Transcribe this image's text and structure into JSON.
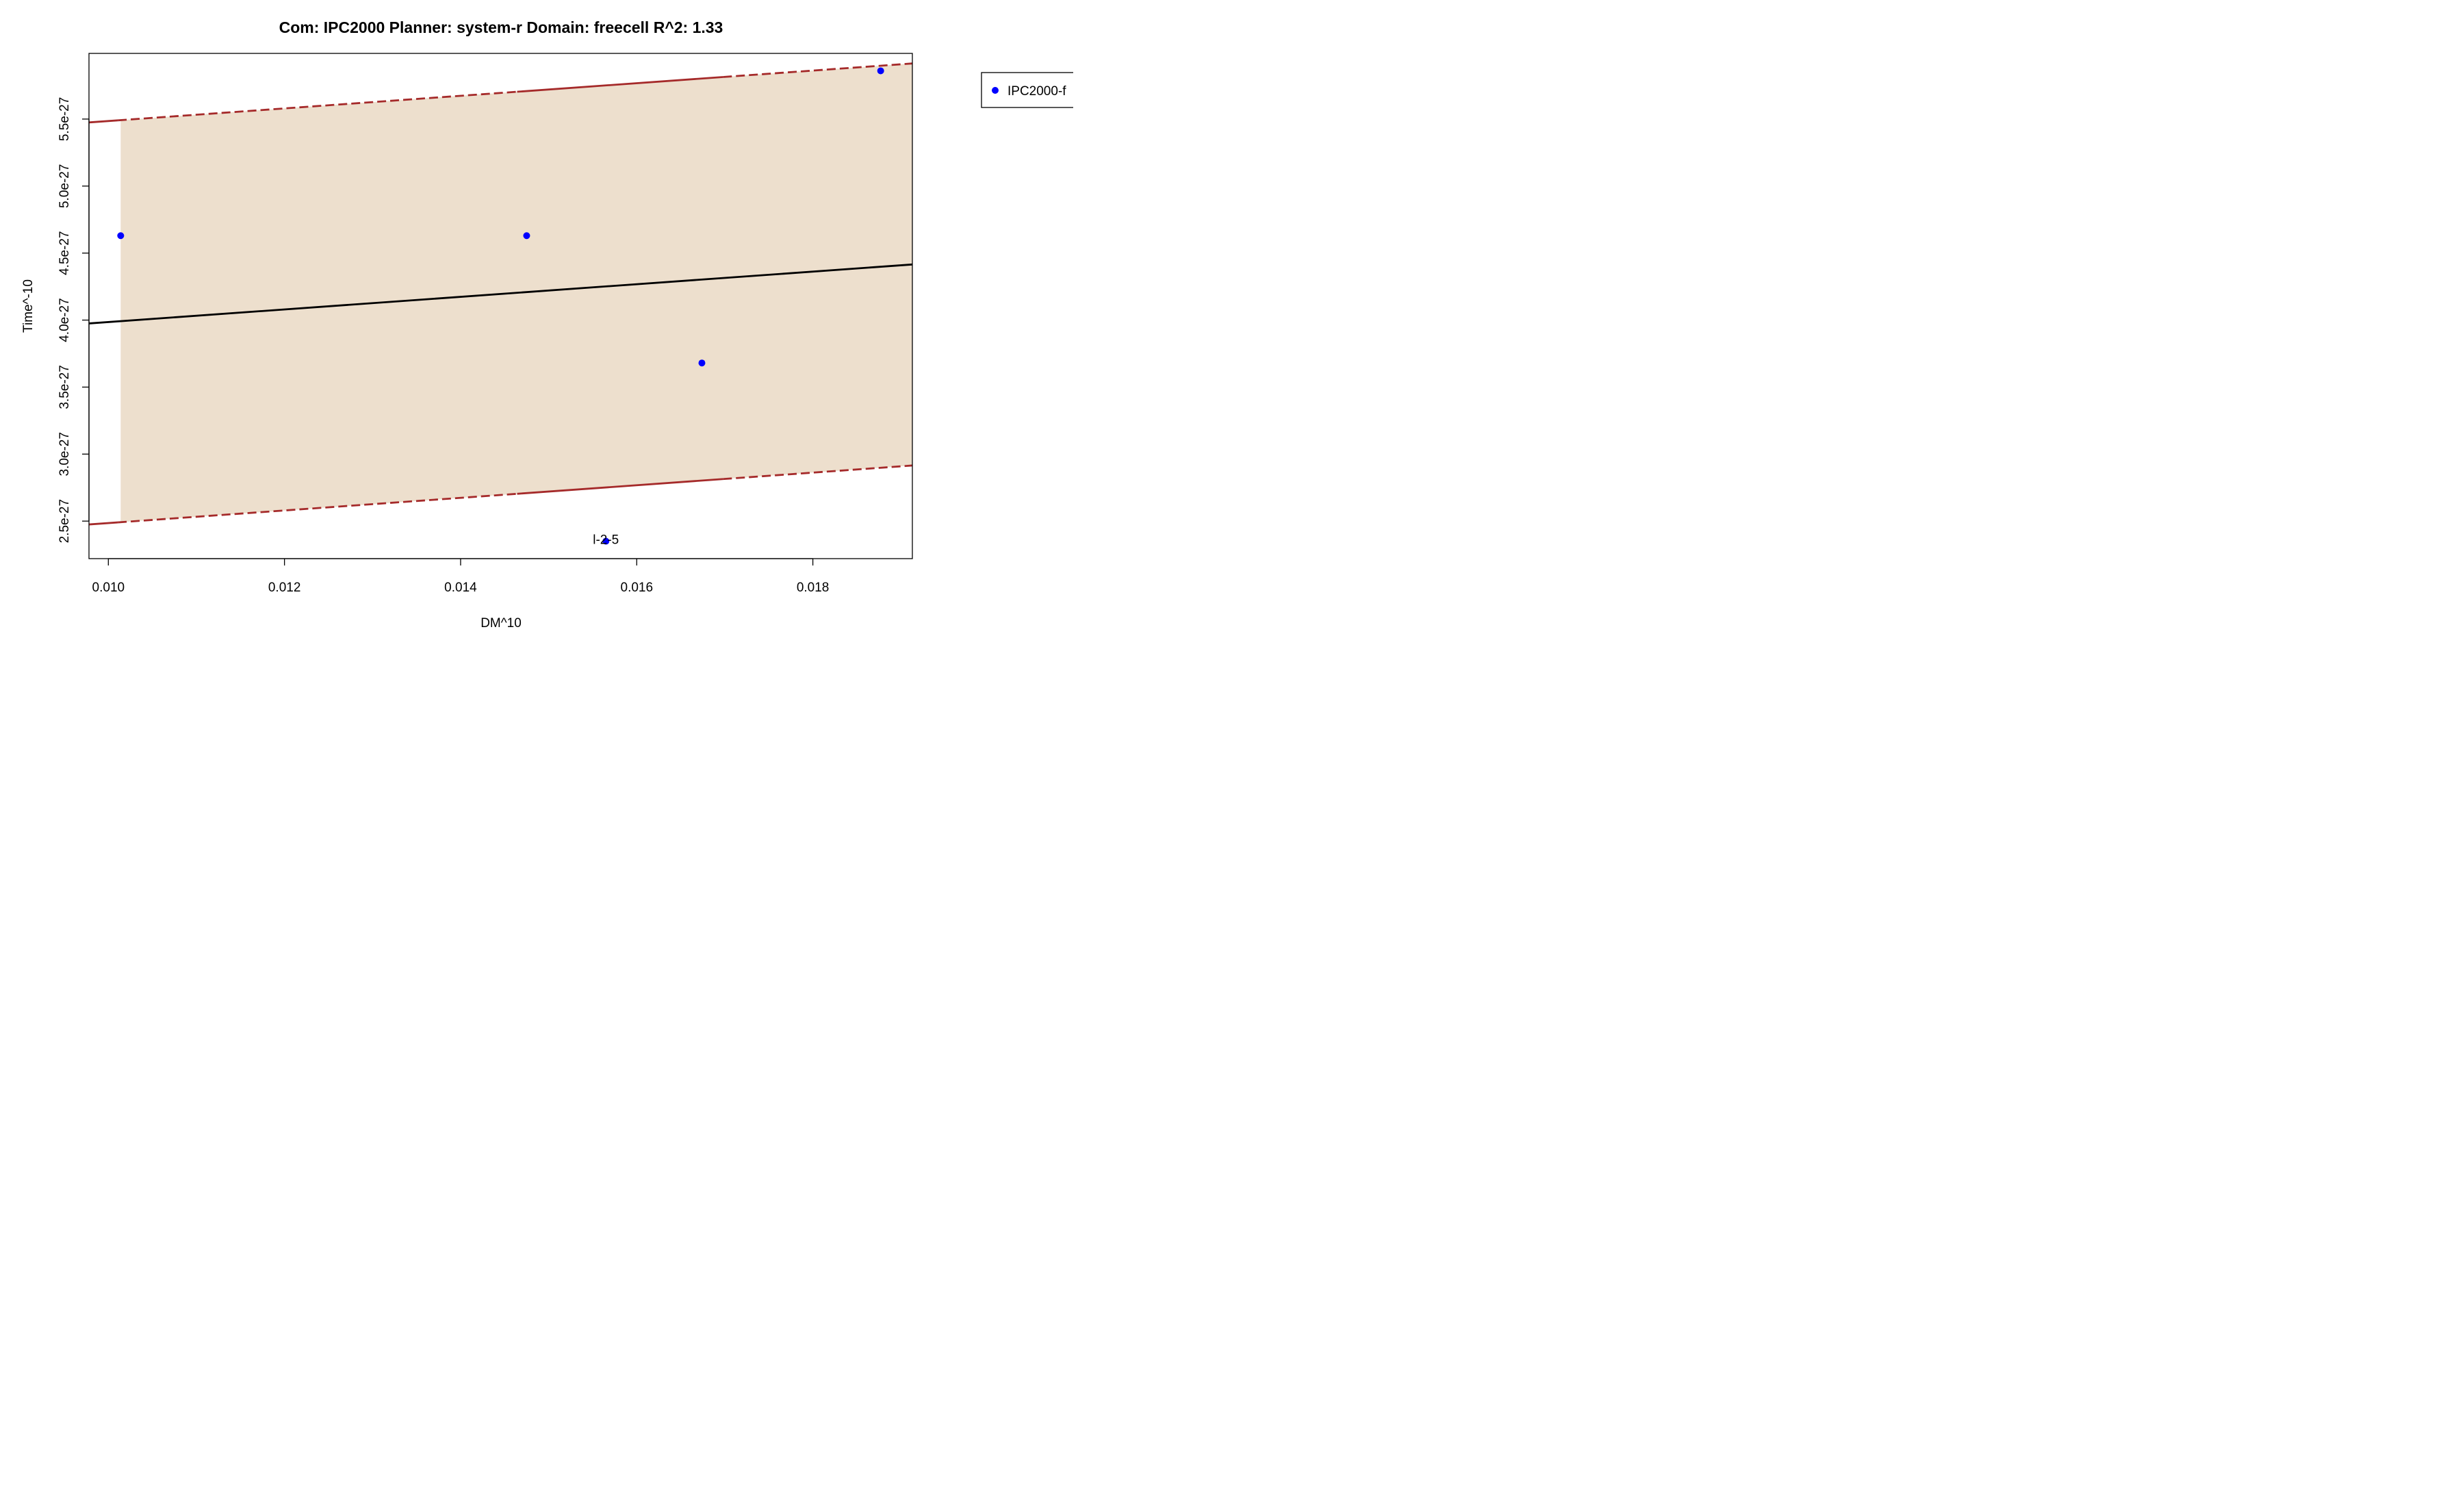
{
  "chart_data": {
    "type": "scatter",
    "title": "Com: IPC2000 Planner: system-r Domain: freecell R^2: 1.33",
    "xlabel": "DM^10",
    "ylabel": "Time^-10",
    "xlim": [
      0.00978,
      0.01913
    ],
    "ylim": [
      2.22e-27,
      5.99e-27
    ],
    "x_ticks": [
      0.01,
      0.012,
      0.014,
      0.016,
      0.018
    ],
    "x_tick_labels": [
      "0.010",
      "0.012",
      "0.014",
      "0.016",
      "0.018"
    ],
    "y_ticks": [
      2.5e-27,
      3e-27,
      3.5e-27,
      4e-27,
      4.5e-27,
      5e-27,
      5.5e-27
    ],
    "y_tick_labels": [
      "2.5e-27",
      "3.0e-27",
      "3.5e-27",
      "4.0e-27",
      "4.5e-27",
      "5.0e-27",
      "5.5e-27"
    ],
    "series": [
      {
        "name": "IPC2000-f",
        "color": "#0000ff",
        "points": [
          {
            "x": 0.01014,
            "y": 4.63e-27,
            "label": ""
          },
          {
            "x": 0.01475,
            "y": 4.63e-27,
            "label": ""
          },
          {
            "x": 0.01565,
            "y": 2.35e-27,
            "label": "l-2-5"
          },
          {
            "x": 0.01674,
            "y": 3.68e-27,
            "label": ""
          },
          {
            "x": 0.01877,
            "y": 5.86e-27,
            "label": ""
          }
        ]
      }
    ],
    "fit_line": {
      "x": [
        0.00978,
        0.01913
      ],
      "y": [
        3.975e-27,
        4.415e-27
      ],
      "color": "#000000"
    },
    "upper_band": {
      "x": [
        0.00978,
        0.01913
      ],
      "y": [
        5.475e-27,
        5.915e-27
      ],
      "color": "#a52a2a"
    },
    "lower_band": {
      "x": [
        0.00978,
        0.01913
      ],
      "y": [
        2.475e-27,
        2.915e-27
      ],
      "color": "#a52a2a"
    },
    "band_fill": {
      "x_start": 0.01014,
      "color": "#eddfcd"
    },
    "legend": {
      "placement": "top-right",
      "entries": [
        "IPC2000-f"
      ]
    },
    "grid": false
  }
}
